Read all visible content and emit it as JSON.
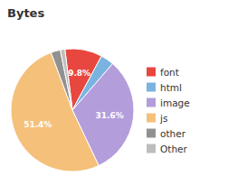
{
  "chart_data": {
    "type": "pie",
    "title": "Bytes",
    "categories": [
      "font",
      "html",
      "image",
      "js",
      "other",
      "Other"
    ],
    "values": [
      9.8,
      3.5,
      31.6,
      51.4,
      2.5,
      1.2
    ],
    "colors": [
      "#e8473f",
      "#7ab3e0",
      "#b39ddb",
      "#f5c07a",
      "#919191",
      "#bdbdbd"
    ],
    "data_labels": true,
    "value_labels": [
      "9.8%",
      null,
      "31.6%",
      "51.4%",
      null,
      null
    ],
    "legend": "right"
  }
}
